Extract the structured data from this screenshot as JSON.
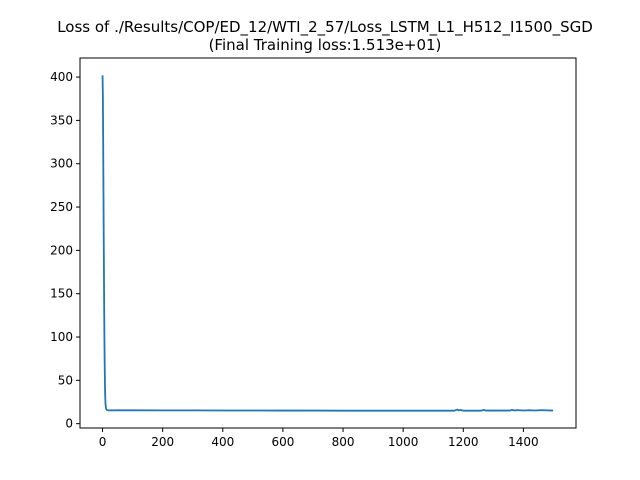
{
  "chart_data": {
    "type": "line",
    "title": "Loss of ./Results/COP/ED_12/WTI_2_57/Loss_LSTM_L1_H512_I1500_SGD",
    "subtitle": "(Final Training loss:1.513e+01)",
    "xlabel": "",
    "ylabel": "",
    "xlim": [
      -75,
      1575
    ],
    "ylim": [
      -5,
      422
    ],
    "x_ticks": [
      0,
      200,
      400,
      600,
      800,
      1000,
      1200,
      1400
    ],
    "y_ticks": [
      0,
      50,
      100,
      150,
      200,
      250,
      300,
      350,
      400
    ],
    "grid": false,
    "legend": "none",
    "line_color": "#1f77b4",
    "series": [
      {
        "points": [
          [
            0,
            402
          ],
          [
            1,
            380
          ],
          [
            2,
            330
          ],
          [
            3,
            270
          ],
          [
            4,
            210
          ],
          [
            5,
            155
          ],
          [
            6,
            108
          ],
          [
            7,
            72
          ],
          [
            8,
            45
          ],
          [
            9,
            30
          ],
          [
            10,
            22
          ],
          [
            12,
            17
          ],
          [
            15,
            15.6
          ],
          [
            20,
            15.3
          ],
          [
            50,
            15.4
          ],
          [
            100,
            15.4
          ],
          [
            200,
            15.3
          ],
          [
            300,
            15.3
          ],
          [
            400,
            15.2
          ],
          [
            500,
            15.2
          ],
          [
            600,
            15.1
          ],
          [
            700,
            15.1
          ],
          [
            800,
            15.0
          ],
          [
            900,
            15.0
          ],
          [
            1000,
            15.0
          ],
          [
            1100,
            15.0
          ],
          [
            1170,
            15.0
          ],
          [
            1180,
            16.3
          ],
          [
            1185,
            15.4
          ],
          [
            1190,
            15.8
          ],
          [
            1200,
            15.0
          ],
          [
            1260,
            15.0
          ],
          [
            1268,
            15.9
          ],
          [
            1275,
            15.1
          ],
          [
            1300,
            15.1
          ],
          [
            1355,
            15.1
          ],
          [
            1362,
            15.9
          ],
          [
            1370,
            15.2
          ],
          [
            1380,
            15.6
          ],
          [
            1400,
            15.2
          ],
          [
            1420,
            15.5
          ],
          [
            1440,
            15.2
          ],
          [
            1460,
            15.6
          ],
          [
            1480,
            15.3
          ],
          [
            1499,
            15.13
          ]
        ]
      }
    ]
  }
}
